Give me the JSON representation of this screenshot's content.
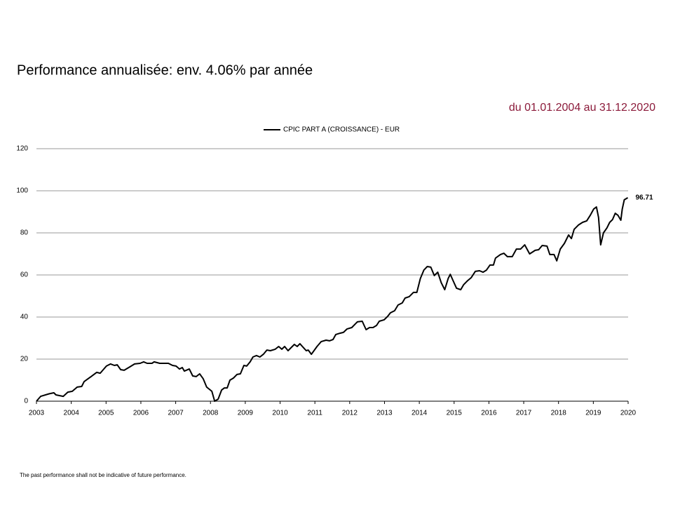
{
  "chart_data": {
    "type": "line",
    "title": "Performance annualisée: env. 4.06% par année",
    "subtitle": "du 01.01.2004 au 31.12.2020",
    "footnote": "The past performance shall not be indicative of future performance.",
    "x": [
      2003.0,
      2003.12,
      2003.36,
      2003.5,
      2003.56,
      2003.77,
      2003.9,
      2004.03,
      2004.17,
      2004.3,
      2004.37,
      2004.57,
      2004.73,
      2004.83,
      2005.01,
      2005.13,
      2005.24,
      2005.32,
      2005.42,
      2005.52,
      2005.68,
      2005.82,
      2005.98,
      2006.08,
      2006.18,
      2006.32,
      2006.38,
      2006.54,
      2006.79,
      2006.91,
      2007.01,
      2007.11,
      2007.19,
      2007.25,
      2007.39,
      2007.49,
      2007.59,
      2007.69,
      2007.79,
      2007.89,
      2008.04,
      2008.12,
      2008.22,
      2008.32,
      2008.4,
      2008.48,
      2008.56,
      2008.66,
      2008.76,
      2008.86,
      2008.96,
      2009.04,
      2009.14,
      2009.22,
      2009.32,
      2009.42,
      2009.52,
      2009.62,
      2009.72,
      2009.86,
      2009.96,
      2010.05,
      2010.13,
      2010.23,
      2010.41,
      2010.49,
      2010.57,
      2010.75,
      2010.81,
      2010.9,
      2011.06,
      2011.18,
      2011.32,
      2011.42,
      2011.52,
      2011.6,
      2011.72,
      2011.82,
      2011.92,
      2012.06,
      2012.22,
      2012.36,
      2012.47,
      2012.57,
      2012.67,
      2012.77,
      2012.85,
      2012.99,
      2013.09,
      2013.17,
      2013.29,
      2013.39,
      2013.51,
      2013.59,
      2013.71,
      2013.83,
      2013.93,
      2014.03,
      2014.13,
      2014.23,
      2014.33,
      2014.43,
      2014.53,
      2014.63,
      2014.73,
      2014.83,
      2014.89,
      2014.97,
      2015.07,
      2015.19,
      2015.27,
      2015.39,
      2015.49,
      2015.61,
      2015.73,
      2015.83,
      2015.93,
      2016.03,
      2016.13,
      2016.19,
      2016.33,
      2016.43,
      2016.53,
      2016.67,
      2016.79,
      2016.91,
      2017.03,
      2017.17,
      2017.33,
      2017.43,
      2017.53,
      2017.67,
      2017.75,
      2017.87,
      2017.95,
      2018.05,
      2018.17,
      2018.29,
      2018.37,
      2018.45,
      2018.57,
      2018.69,
      2018.81,
      2018.91,
      2019.01,
      2019.09,
      2019.15,
      2019.21,
      2019.29,
      2019.39,
      2019.47,
      2019.55,
      2019.63,
      2019.71,
      2019.79,
      2019.83,
      2019.89,
      2019.99
    ],
    "series": [
      {
        "name": "CPIC PART A (CROISSANCE) - EUR",
        "color": "#000000",
        "values": [
          0,
          2.3,
          3.5,
          4,
          3,
          2.3,
          4.3,
          4.7,
          6.7,
          7,
          9.3,
          11.7,
          13.7,
          13.3,
          16.7,
          17.7,
          17,
          17.3,
          15,
          14.7,
          16.3,
          17.7,
          18,
          18.7,
          18,
          18,
          18.7,
          18,
          18,
          17,
          16.7,
          15.3,
          16,
          14.3,
          15.3,
          12,
          11.7,
          13,
          10.7,
          6.7,
          4.7,
          0,
          1,
          5.3,
          6.3,
          6.3,
          10,
          11,
          12.7,
          13,
          17,
          16.7,
          18.7,
          21,
          21.7,
          21,
          22.3,
          24.3,
          24,
          24.7,
          26,
          24.7,
          26,
          24,
          27,
          26,
          27.3,
          24,
          24.3,
          22.3,
          26,
          28.3,
          29,
          28.7,
          29.3,
          31.7,
          32.3,
          32.7,
          34.3,
          35,
          37.7,
          38,
          34,
          35,
          35,
          36,
          38,
          38.7,
          40.3,
          42,
          43,
          45.7,
          46.7,
          49,
          49.7,
          51.7,
          51.7,
          58.3,
          62.3,
          64,
          63.7,
          59.7,
          61.3,
          56.3,
          53,
          58.3,
          60.3,
          57.3,
          53.7,
          53,
          55.3,
          57.3,
          58.7,
          61.7,
          62,
          61.3,
          62.3,
          64.7,
          64.7,
          68,
          69.7,
          70.3,
          68.7,
          68.7,
          72.3,
          72.3,
          74.3,
          70,
          71.7,
          72,
          74,
          73.7,
          69.7,
          69.7,
          66.7,
          72.3,
          75,
          79,
          77.3,
          81.7,
          83.7,
          85,
          85.7,
          88.3,
          91.3,
          92.3,
          87.3,
          74.3,
          80,
          82.3,
          85,
          86.3,
          89.3,
          88.3,
          86,
          91.3,
          95.7,
          96.71
        ]
      }
    ],
    "xlim": [
      2003,
      2020
    ],
    "xticks": [
      2003,
      2004,
      2005,
      2006,
      2007,
      2008,
      2009,
      2010,
      2011,
      2012,
      2013,
      2014,
      2015,
      2016,
      2017,
      2018,
      2019,
      2020
    ],
    "ylim": [
      0,
      120
    ],
    "yticks": [
      0,
      20,
      40,
      60,
      80,
      100,
      120
    ],
    "grid": true,
    "legend": "top"
  }
}
